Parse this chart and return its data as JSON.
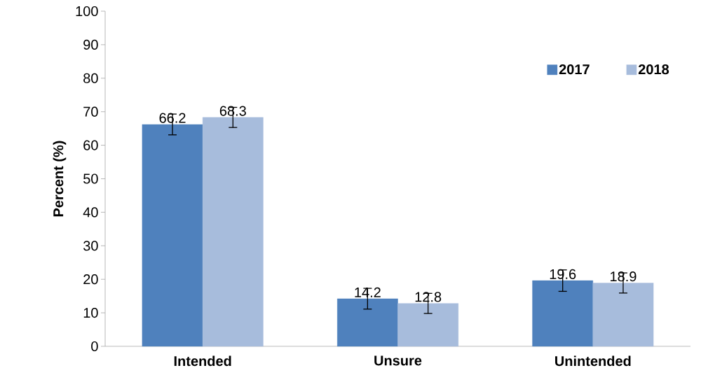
{
  "chart_data": {
    "type": "bar",
    "ylabel": "Percent (%)",
    "categories": [
      "Intended",
      "Unsure",
      "Unintended"
    ],
    "series": [
      {
        "name": "2017",
        "color": "#4f81bd",
        "values": [
          66.2,
          14.2,
          19.6
        ],
        "errors": [
          3.1,
          3.1,
          3.2
        ]
      },
      {
        "name": "2018",
        "color": "#a7bcdc",
        "values": [
          68.3,
          12.8,
          18.9
        ],
        "errors": [
          3.0,
          3.0,
          3.0
        ]
      }
    ],
    "ylim": [
      0,
      100
    ],
    "yticks": [
      0,
      10,
      20,
      30,
      40,
      50,
      60,
      70,
      80,
      90,
      100
    ],
    "data_labels": true,
    "grid": false,
    "legend": "top right"
  }
}
